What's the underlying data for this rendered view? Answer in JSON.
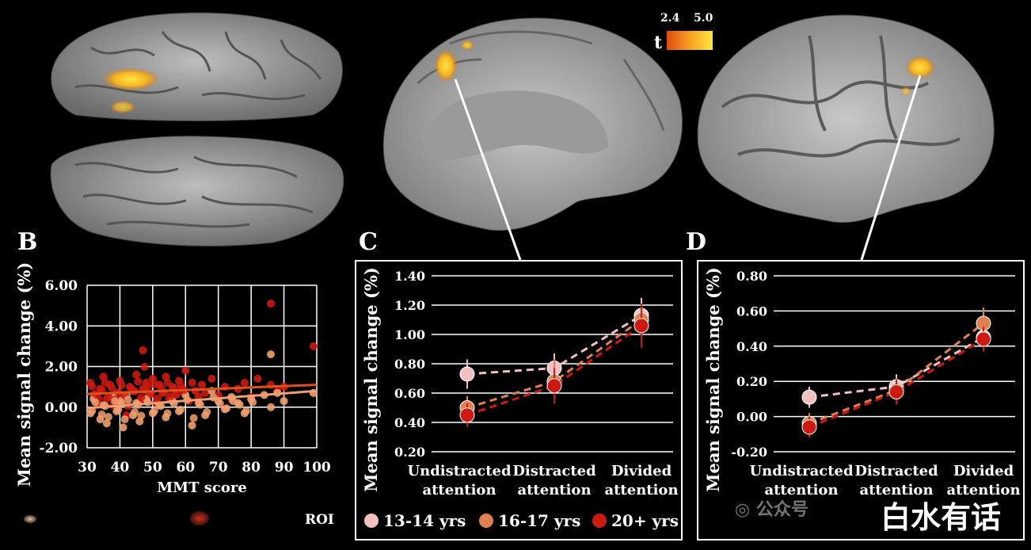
{
  "colorbar": {
    "label": "t",
    "min": "2.4",
    "max": "5.0"
  },
  "panels": {
    "b": "B",
    "c": "C",
    "d": "D"
  },
  "roi_label": "ROI",
  "watermark": {
    "source": "公众号",
    "name": "白水有话"
  },
  "chart_data": [
    {
      "id": "B",
      "type": "scatter",
      "xlabel": "MMT score",
      "ylabel": "Mean signal change (%)",
      "xlim": [
        30,
        100
      ],
      "ylim": [
        -2,
        6
      ],
      "xticks": [
        "30",
        "40",
        "50",
        "60",
        "70",
        "80",
        "90",
        "100"
      ],
      "yticks": [
        "6.00",
        "4.00",
        "2.00",
        "0.00",
        "-2.00"
      ],
      "grid": true,
      "series": [
        {
          "color": "#cc1a12",
          "points": [
            [
              31,
              1.2
            ],
            [
              32,
              0.6
            ],
            [
              33,
              0.2
            ],
            [
              34,
              0.9
            ],
            [
              35,
              1.5
            ],
            [
              36,
              0.4
            ],
            [
              37,
              1.1
            ],
            [
              38,
              0.1
            ],
            [
              39,
              0.7
            ],
            [
              40,
              1.3
            ],
            [
              41,
              0.5
            ],
            [
              42,
              -0.4
            ],
            [
              43,
              1.0
            ],
            [
              44,
              0.8
            ],
            [
              45,
              1.6
            ],
            [
              46,
              0.3
            ],
            [
              47,
              2.8
            ],
            [
              47,
              0.9
            ],
            [
              48,
              1.2
            ],
            [
              49,
              0.6
            ],
            [
              50,
              1.4
            ],
            [
              51,
              0.2
            ],
            [
              52,
              1.1
            ],
            [
              53,
              0.7
            ],
            [
              54,
              1.5
            ],
            [
              55,
              0.4
            ],
            [
              56,
              1.0
            ],
            [
              57,
              0.6
            ],
            [
              58,
              1.3
            ],
            [
              59,
              0.9
            ],
            [
              60,
              1.8
            ],
            [
              61,
              0.3
            ],
            [
              62,
              1.2
            ],
            [
              63,
              0.8
            ],
            [
              64,
              0.5
            ],
            [
              65,
              1.1
            ],
            [
              66,
              0.7
            ],
            [
              68,
              1.4
            ],
            [
              70,
              0.6
            ],
            [
              72,
              1.0
            ],
            [
              74,
              0.4
            ],
            [
              76,
              0.9
            ],
            [
              78,
              1.2
            ],
            [
              80,
              0.5
            ],
            [
              82,
              1.4
            ],
            [
              86,
              5.1
            ],
            [
              86,
              1.1
            ],
            [
              88,
              0.8
            ],
            [
              90,
              1.0
            ],
            [
              99,
              3.0
            ]
          ]
        },
        {
          "color": "#f0a070",
          "points": [
            [
              31,
              -0.3
            ],
            [
              32,
              0.4
            ],
            [
              34,
              -0.6
            ],
            [
              35,
              0.1
            ],
            [
              36,
              -0.8
            ],
            [
              38,
              0.5
            ],
            [
              39,
              -0.2
            ],
            [
              40,
              0.3
            ],
            [
              41,
              -1.0
            ],
            [
              42,
              0.6
            ],
            [
              44,
              -0.4
            ],
            [
              45,
              0.2
            ],
            [
              46,
              -0.7
            ],
            [
              48,
              0.4
            ],
            [
              50,
              -0.3
            ],
            [
              52,
              0.1
            ],
            [
              54,
              -0.5
            ],
            [
              56,
              0.3
            ],
            [
              58,
              -0.2
            ],
            [
              60,
              0.6
            ],
            [
              62,
              -0.9
            ],
            [
              64,
              0.2
            ],
            [
              66,
              -0.4
            ],
            [
              68,
              0.8
            ],
            [
              70,
              0.3
            ],
            [
              72,
              -0.1
            ],
            [
              74,
              0.5
            ],
            [
              76,
              0.2
            ],
            [
              78,
              -0.3
            ],
            [
              80,
              0.4
            ],
            [
              84,
              0.6
            ],
            [
              86,
              2.6
            ],
            [
              86,
              0.0
            ],
            [
              88,
              0.7
            ],
            [
              90,
              0.3
            ],
            [
              99,
              0.7
            ]
          ]
        }
      ],
      "trendlines": [
        {
          "color": "#e0501c",
          "from": [
            30,
            0.65
          ],
          "to": [
            100,
            1.1
          ]
        },
        {
          "color": "#f0a070",
          "from": [
            30,
            -0.05
          ],
          "to": [
            100,
            0.8
          ]
        }
      ]
    },
    {
      "id": "C",
      "type": "line",
      "categories": [
        "Undistracted\nattention",
        "Distracted\nattention",
        "Divided\nattention"
      ],
      "ylabel": "Mean signal change (%)",
      "ylim": [
        0.2,
        1.4
      ],
      "yticks": [
        "1.40",
        "1.20",
        "1.00",
        "0.80",
        "0.60",
        "0.40",
        "0.20"
      ],
      "grid": true,
      "series": [
        {
          "name": "13-14 yrs",
          "color": "#f2c0c0",
          "values": [
            0.73,
            0.77,
            1.13
          ],
          "errors": [
            0.1,
            0.1,
            0.12
          ]
        },
        {
          "name": "16-17 yrs",
          "color": "#e08050",
          "values": [
            0.5,
            0.68,
            1.1
          ],
          "errors": [
            0.08,
            0.15,
            0.1
          ]
        },
        {
          "name": "20+ yrs",
          "color": "#cc1a12",
          "values": [
            0.45,
            0.65,
            1.06
          ],
          "errors": [
            0.08,
            0.12,
            0.15
          ]
        }
      ]
    },
    {
      "id": "D",
      "type": "line",
      "categories": [
        "Undistracted\nattention",
        "Distracted\nattention",
        "Divided\nattention"
      ],
      "ylabel": "Mean signal change (%)",
      "ylim": [
        -0.2,
        0.8
      ],
      "yticks": [
        "0.80",
        "0.60",
        "0.40",
        "0.20",
        "0.00",
        "-0.20"
      ],
      "grid": true,
      "series": [
        {
          "name": "13-14 yrs",
          "color": "#f2c0c0",
          "values": [
            0.11,
            0.17,
            0.45
          ],
          "errors": [
            0.06,
            0.07,
            0.08
          ]
        },
        {
          "name": "16-17 yrs",
          "color": "#e08050",
          "values": [
            -0.04,
            0.15,
            0.53
          ],
          "errors": [
            0.06,
            0.07,
            0.09
          ]
        },
        {
          "name": "20+ yrs",
          "color": "#cc1a12",
          "values": [
            -0.06,
            0.14,
            0.44
          ],
          "errors": [
            0.06,
            0.07,
            0.07
          ]
        }
      ]
    }
  ]
}
